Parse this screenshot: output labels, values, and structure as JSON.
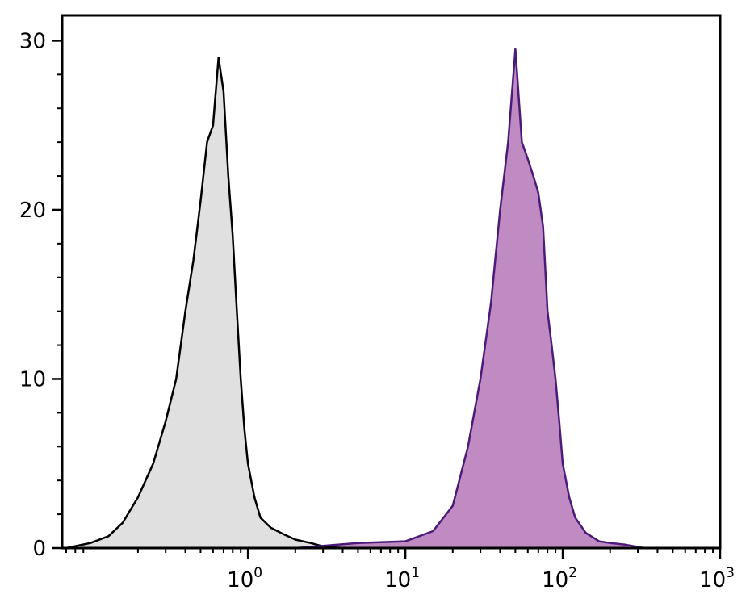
{
  "chart_data": {
    "type": "area",
    "title": "",
    "xlabel": "",
    "ylabel": "",
    "x_scale": "log",
    "xlim": [
      0.066,
      1000
    ],
    "ylim": [
      0,
      31.5
    ],
    "grid": false,
    "legend": "none",
    "x_ticks": [
      {
        "value": 1,
        "base": "10",
        "exp": "0"
      },
      {
        "value": 10,
        "base": "10",
        "exp": "1"
      },
      {
        "value": 100,
        "base": "10",
        "exp": "2"
      },
      {
        "value": 1000,
        "base": "10",
        "exp": "3"
      }
    ],
    "y_ticks": [
      {
        "value": 0,
        "label": "0"
      },
      {
        "value": 10,
        "label": "10"
      },
      {
        "value": 20,
        "label": "20"
      },
      {
        "value": 30,
        "label": "30"
      }
    ],
    "series": [
      {
        "fill": "#e0e0e0",
        "stroke": "#000000",
        "x": [
          0.07,
          0.1,
          0.13,
          0.16,
          0.2,
          0.25,
          0.3,
          0.35,
          0.4,
          0.45,
          0.5,
          0.55,
          0.6,
          0.65,
          0.7,
          0.75,
          0.8,
          0.85,
          0.9,
          0.95,
          1.0,
          1.1,
          1.2,
          1.4,
          1.7,
          2.0,
          2.5,
          3.0,
          4.0
        ],
        "y": [
          0,
          0.3,
          0.7,
          1.5,
          3,
          5,
          7.5,
          10,
          14,
          17,
          20.5,
          24,
          25,
          29,
          27,
          22,
          18.5,
          14,
          10,
          7,
          5,
          3,
          1.8,
          1.2,
          0.8,
          0.5,
          0.3,
          0.1,
          0
        ]
      },
      {
        "fill": "#c08bc3",
        "stroke": "#4b1b7a",
        "x": [
          2.0,
          5.0,
          10,
          15,
          20,
          25,
          30,
          35,
          40,
          45,
          50,
          55,
          60,
          65,
          70,
          75,
          80,
          85,
          90,
          95,
          100,
          110,
          120,
          140,
          170,
          200,
          250,
          330
        ],
        "y": [
          0,
          0.3,
          0.4,
          1,
          2.5,
          6,
          10,
          14.5,
          20,
          24,
          29.5,
          24,
          23,
          22,
          21,
          19,
          14,
          12,
          10,
          7.5,
          5,
          3,
          1.8,
          0.9,
          0.4,
          0.3,
          0.2,
          0
        ]
      }
    ]
  }
}
